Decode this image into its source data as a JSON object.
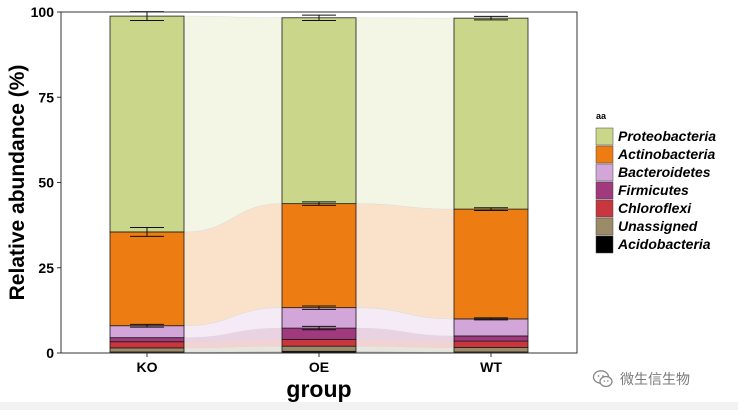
{
  "chart_data": {
    "type": "bar",
    "stacked": true,
    "categories": [
      "KO",
      "OE",
      "WT"
    ],
    "xlabel": "group",
    "ylabel": "Relative abundance (%)",
    "ylim": [
      0,
      100
    ],
    "yticks": [
      0,
      25,
      50,
      75,
      100
    ],
    "grid": false,
    "legend_title": "aa",
    "legend_position": "right",
    "series": [
      {
        "name": "Acidobacteria",
        "color": "#000000",
        "values": [
          0.3,
          0.5,
          0.3
        ],
        "errors": [
          null,
          null,
          null
        ]
      },
      {
        "name": "Unassigned",
        "color": "#9b8b69",
        "values": [
          1.2,
          1.5,
          1.3
        ],
        "errors": [
          null,
          null,
          null
        ]
      },
      {
        "name": "Chloroflexi",
        "color": "#c8373d",
        "values": [
          1.8,
          2.0,
          1.9
        ],
        "errors": [
          null,
          null,
          null
        ]
      },
      {
        "name": "Firmicutes",
        "color": "#a0397e",
        "values": [
          1.2,
          3.3,
          1.5
        ],
        "errors": [
          null,
          0.5,
          null
        ]
      },
      {
        "name": "Bacteroidetes",
        "color": "#d3a6d9",
        "values": [
          3.5,
          6.0,
          5.0
        ],
        "errors": [
          0.4,
          0.5,
          0.3
        ]
      },
      {
        "name": "Actinobacteria",
        "color": "#ed7d13",
        "values": [
          27.5,
          30.5,
          32.2
        ],
        "errors": [
          1.3,
          0.5,
          0.4
        ]
      },
      {
        "name": "Proteobacteria",
        "color": "#cad78b",
        "values": [
          63.3,
          54.5,
          56.0
        ],
        "errors": [
          1.3,
          0.8,
          0.5
        ]
      }
    ]
  },
  "watermark": {
    "text": "微生信生物",
    "icon": "wechat-icon"
  }
}
